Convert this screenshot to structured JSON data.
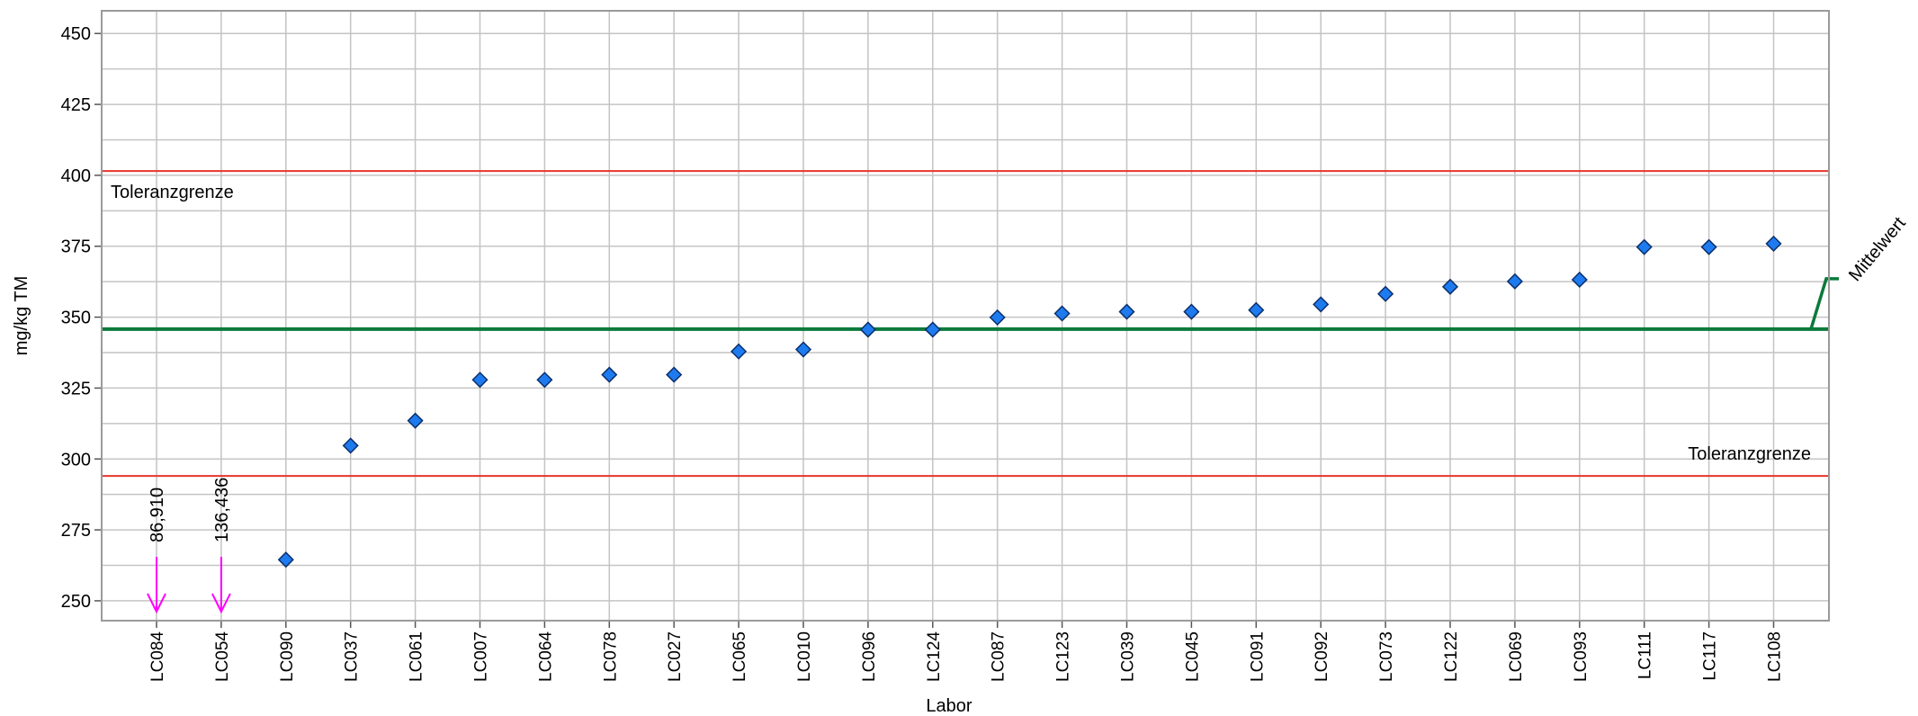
{
  "chart_data": {
    "type": "scatter",
    "xlabel": "Labor",
    "ylabel": "mg/kg TM",
    "ylim": [
      243,
      458
    ],
    "yticks": [
      "250",
      "275",
      "300",
      "325",
      "350",
      "375",
      "400",
      "425",
      "450"
    ],
    "categories": [
      "LC084",
      "LC054",
      "LC090",
      "LC037",
      "LC061",
      "LC007",
      "LC064",
      "LC078",
      "LC027",
      "LC065",
      "LC010",
      "LC096",
      "LC124",
      "LC087",
      "LC123",
      "LC039",
      "LC045",
      "LC091",
      "LC092",
      "LC073",
      "LC122",
      "LC069",
      "LC093",
      "LC111",
      "LC117",
      "LC108"
    ],
    "values": [
      null,
      null,
      264.5,
      304.7,
      313.5,
      327.9,
      327.9,
      329.7,
      329.7,
      337.9,
      338.6,
      345.6,
      345.6,
      349.9,
      351.3,
      351.9,
      351.9,
      352.5,
      354.5,
      358.2,
      360.7,
      362.6,
      363.2,
      374.7,
      374.7,
      375.9
    ],
    "outliers": [
      {
        "category": "LC084",
        "label": "86,910"
      },
      {
        "category": "LC054",
        "label": "136,436"
      }
    ],
    "reference_lines": {
      "mean": {
        "value": 345.8,
        "label": "Mittelwert",
        "color": "#0a7a3a"
      },
      "upper_tolerance": {
        "value": 401.5,
        "label": "Toleranzgrenze",
        "color": "#e8352b"
      },
      "lower_tolerance": {
        "value": 294.0,
        "label": "Toleranzgrenze",
        "color": "#e8352b"
      }
    },
    "marker_color": "#1e7bef",
    "outlier_color": "#ff00ff",
    "grid": true
  }
}
